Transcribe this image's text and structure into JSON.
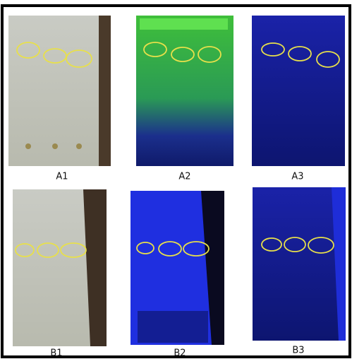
{
  "panels": [
    {
      "label": "A1"
    },
    {
      "label": "A2"
    },
    {
      "label": "A3"
    },
    {
      "label": "B1"
    },
    {
      "label": "B2"
    },
    {
      "label": "B3"
    }
  ]
}
